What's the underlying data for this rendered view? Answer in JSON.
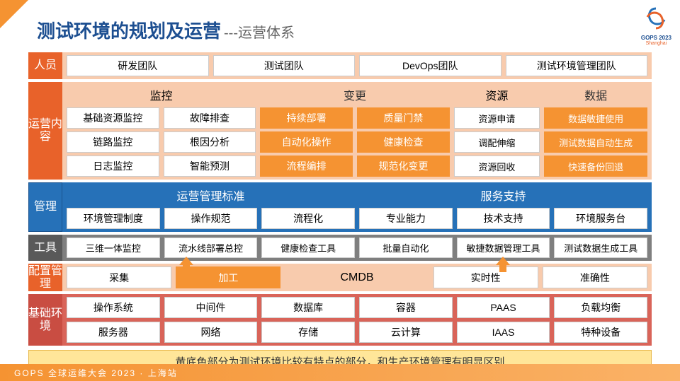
{
  "title_main": "测试环境的规划及运营",
  "title_sub": "---运营体系",
  "logo": {
    "text": "GOPS 2023",
    "sub": "Shanghai"
  },
  "labels": {
    "people": "人员",
    "ops": "运营内容",
    "mgmt": "管理",
    "tool": "工具",
    "cfg": "配置管理",
    "env": "基础环境"
  },
  "people": [
    "研发团队",
    "测试团队",
    "DevOps团队",
    "测试环境管理团队"
  ],
  "ops": {
    "monitor": {
      "head": "监控",
      "items": [
        "基础资源监控",
        "故障排查",
        "链路监控",
        "根因分析",
        "日志监控",
        "智能预测"
      ]
    },
    "change": {
      "head": "变更",
      "items": [
        "持续部署",
        "质量门禁",
        "自动化操作",
        "健康检查",
        "流程编排",
        "规范化变更"
      ]
    },
    "resource": {
      "head": "资源",
      "items": [
        "资源申请",
        "调配伸缩",
        "资源回收"
      ]
    },
    "data": {
      "head": "数据",
      "items": [
        "数据敏捷使用",
        "测试数据自动生成",
        "快速备份回退"
      ]
    }
  },
  "mgmt": {
    "std": {
      "head": "运营管理标准",
      "items": [
        "环境管理制度",
        "操作规范",
        "流程化"
      ]
    },
    "svc": {
      "head": "服务支持",
      "items": [
        "专业能力",
        "技术支持",
        "环境服务台"
      ]
    }
  },
  "tools": [
    "三维一体监控",
    "流水线部署总控",
    "健康检查工具",
    "批量自动化",
    "敏捷数据管理工具",
    "测试数据生成工具"
  ],
  "cfg": [
    "采集",
    "加工",
    "CMDB",
    "实时性",
    "准确性"
  ],
  "env": {
    "r1": [
      "操作系统",
      "中间件",
      "数据库",
      "容器",
      "PAAS",
      "负载均衡"
    ],
    "r2": [
      "服务器",
      "网络",
      "存储",
      "云计算",
      "IAAS",
      "特种设备"
    ]
  },
  "note": "黄底色部分为测试环境比较有特点的部分，和生产环境管理有明显区别",
  "footer": "GOPS 全球运维大会 2023 · 上海站",
  "colors": {
    "orange": "#f59332",
    "blue": "#2671b8",
    "gray": "#7f7f7f",
    "peach": "#f8cbad",
    "red": "#d96459",
    "yellow": "#ffe699"
  }
}
